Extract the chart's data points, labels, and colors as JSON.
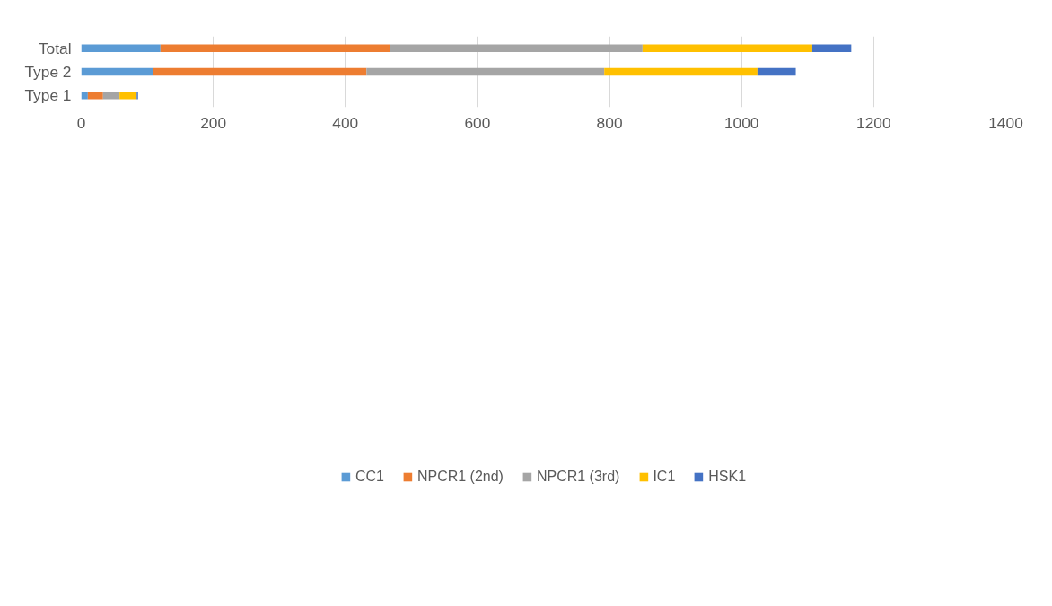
{
  "chart_data": {
    "type": "bar",
    "orientation": "horizontal",
    "stacked": true,
    "categories": [
      "Total",
      "Type 2",
      "Type 1"
    ],
    "series": [
      {
        "name": "CC1",
        "color": "#5b9bd5",
        "values": [
          120,
          109,
          10
        ]
      },
      {
        "name": "NPCR1 (2nd)",
        "color": "#ed7d31",
        "values": [
          347,
          323,
          23
        ]
      },
      {
        "name": "NPCR1 (3rd)",
        "color": "#a5a5a5",
        "values": [
          383,
          360,
          25
        ]
      },
      {
        "name": "IC1",
        "color": "#ffc000",
        "values": [
          257,
          232,
          26
        ]
      },
      {
        "name": "HSK1",
        "color": "#4472c4",
        "values": [
          59,
          58,
          2
        ]
      }
    ],
    "xlim": [
      0,
      1400
    ],
    "xticks": [
      0,
      200,
      400,
      600,
      800,
      1000,
      1200,
      1400
    ],
    "grid": "x",
    "legend": "bottom"
  }
}
